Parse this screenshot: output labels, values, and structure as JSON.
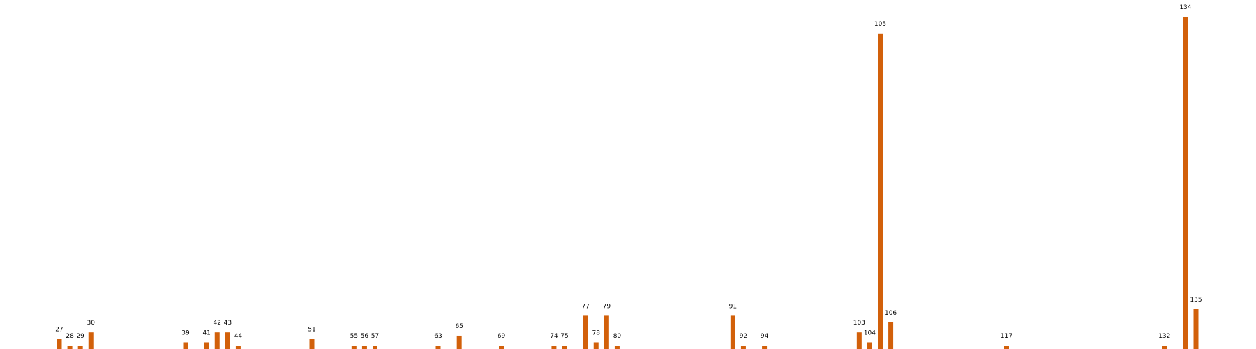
{
  "colors": {
    "bar": "#d2600a",
    "label": "#000000",
    "background": "#ffffff"
  },
  "chart_data": {
    "type": "bar",
    "title": "",
    "xlabel": "",
    "ylabel": "",
    "grid": false,
    "axes_visible": false,
    "ylim": [
      0,
      100
    ],
    "categories": [
      "27",
      "28",
      "29",
      "30",
      "39",
      "41",
      "42",
      "43",
      "44",
      "51",
      "55",
      "56",
      "57",
      "63",
      "65",
      "69",
      "74",
      "75",
      "77",
      "78",
      "79",
      "80",
      "91",
      "92",
      "94",
      "103",
      "104",
      "105",
      "106",
      "117",
      "132",
      "134",
      "135"
    ],
    "x": [
      27,
      28,
      29,
      30,
      39,
      41,
      42,
      43,
      44,
      51,
      55,
      56,
      57,
      63,
      65,
      69,
      74,
      75,
      77,
      78,
      79,
      80,
      91,
      92,
      94,
      103,
      104,
      105,
      106,
      117,
      132,
      134,
      135
    ],
    "values": [
      3,
      1,
      1,
      5,
      2,
      2,
      5,
      5,
      1,
      3,
      1,
      1,
      1,
      1,
      4,
      1,
      1,
      1,
      10,
      2,
      10,
      1,
      10,
      1,
      1,
      5,
      2,
      95,
      8,
      1,
      1,
      100,
      12
    ]
  }
}
